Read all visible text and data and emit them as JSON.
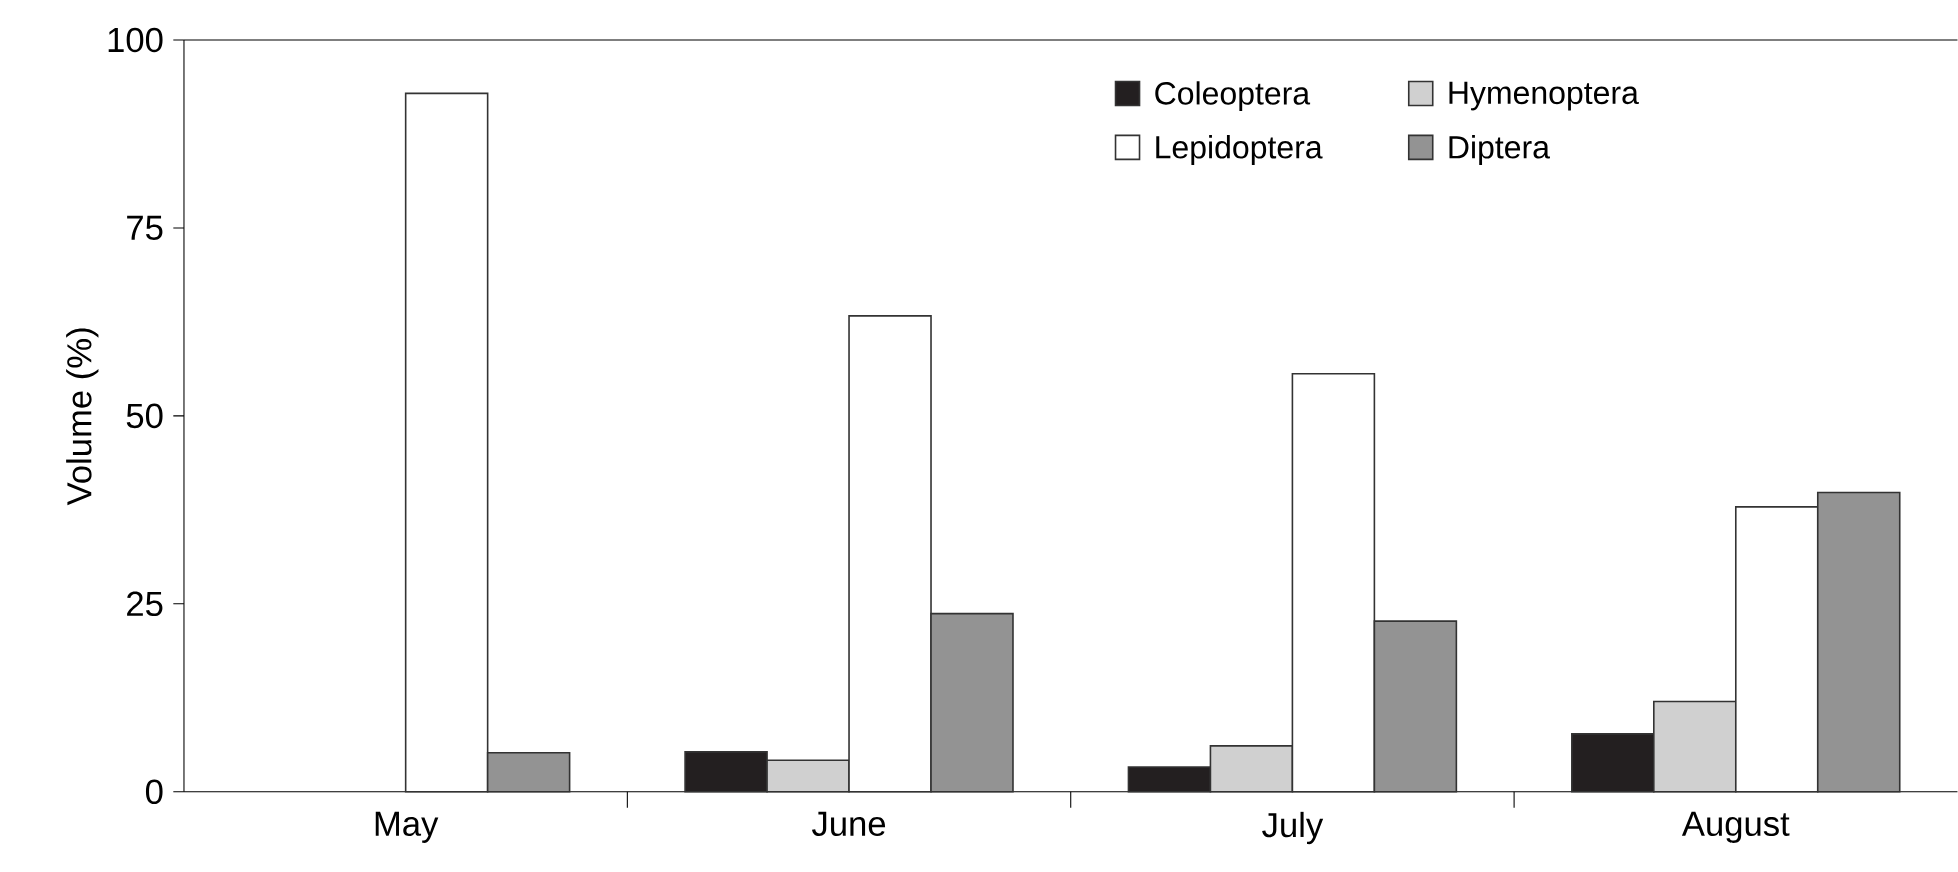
{
  "chart_data": {
    "type": "bar",
    "ylabel": "Volume (%)",
    "categories": [
      "May",
      "June",
      "July",
      "August"
    ],
    "series": [
      {
        "name": "Coleoptera",
        "color": "#231f20",
        "values": [
          0,
          5.3,
          3.3,
          7.7
        ]
      },
      {
        "name": "Hymenoptera",
        "color": "#d0d0d0",
        "values": [
          0,
          4.2,
          6.1,
          12.0
        ]
      },
      {
        "name": "Lepidoptera",
        "color": "#ffffff",
        "values": [
          92.9,
          63.3,
          55.6,
          37.9
        ]
      },
      {
        "name": "Diptera",
        "color": "#939393",
        "values": [
          5.2,
          23.7,
          22.7,
          39.8
        ]
      }
    ],
    "ylim": [
      0,
      100
    ],
    "yticks": [
      0,
      25,
      50,
      75,
      100
    ],
    "grid": false,
    "legend": "top right"
  }
}
